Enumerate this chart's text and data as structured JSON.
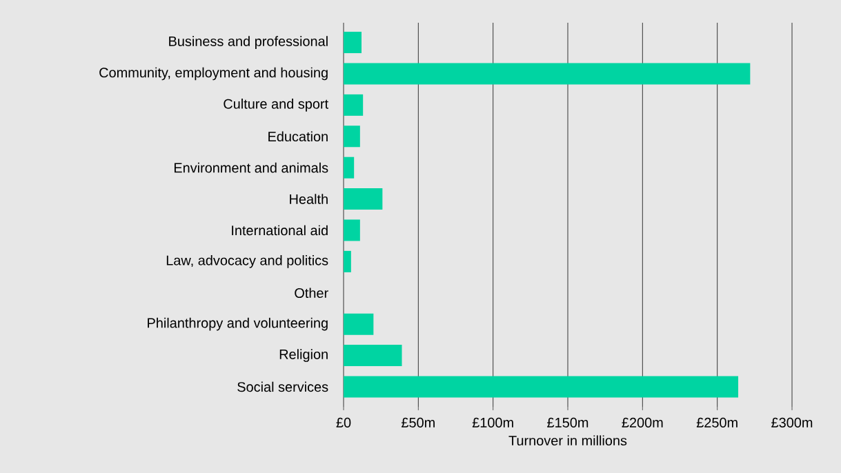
{
  "chart_data": {
    "type": "bar",
    "orientation": "horizontal",
    "xlabel": "Turnover in millions",
    "categories": [
      "Business and professional",
      "Community, employment and housing",
      "Culture and sport",
      "Education",
      "Environment and animals",
      "Health",
      "International aid",
      "Law, advocacy and politics",
      "Other",
      "Philanthropy and volunteering",
      "Religion",
      "Social services"
    ],
    "values": [
      12,
      272,
      13,
      11,
      7,
      26,
      11,
      5,
      0,
      20,
      39,
      264
    ],
    "color": "#00d4a2",
    "xlim": [
      0,
      300
    ],
    "xticks": [
      {
        "value": 0,
        "label": "£0"
      },
      {
        "value": 50,
        "label": "£50m"
      },
      {
        "value": 100,
        "label": "£100m"
      },
      {
        "value": 150,
        "label": "£150m"
      },
      {
        "value": 200,
        "label": "£200m"
      },
      {
        "value": 250,
        "label": "£250m"
      },
      {
        "value": 300,
        "label": "£300m"
      }
    ],
    "grid": "x"
  }
}
